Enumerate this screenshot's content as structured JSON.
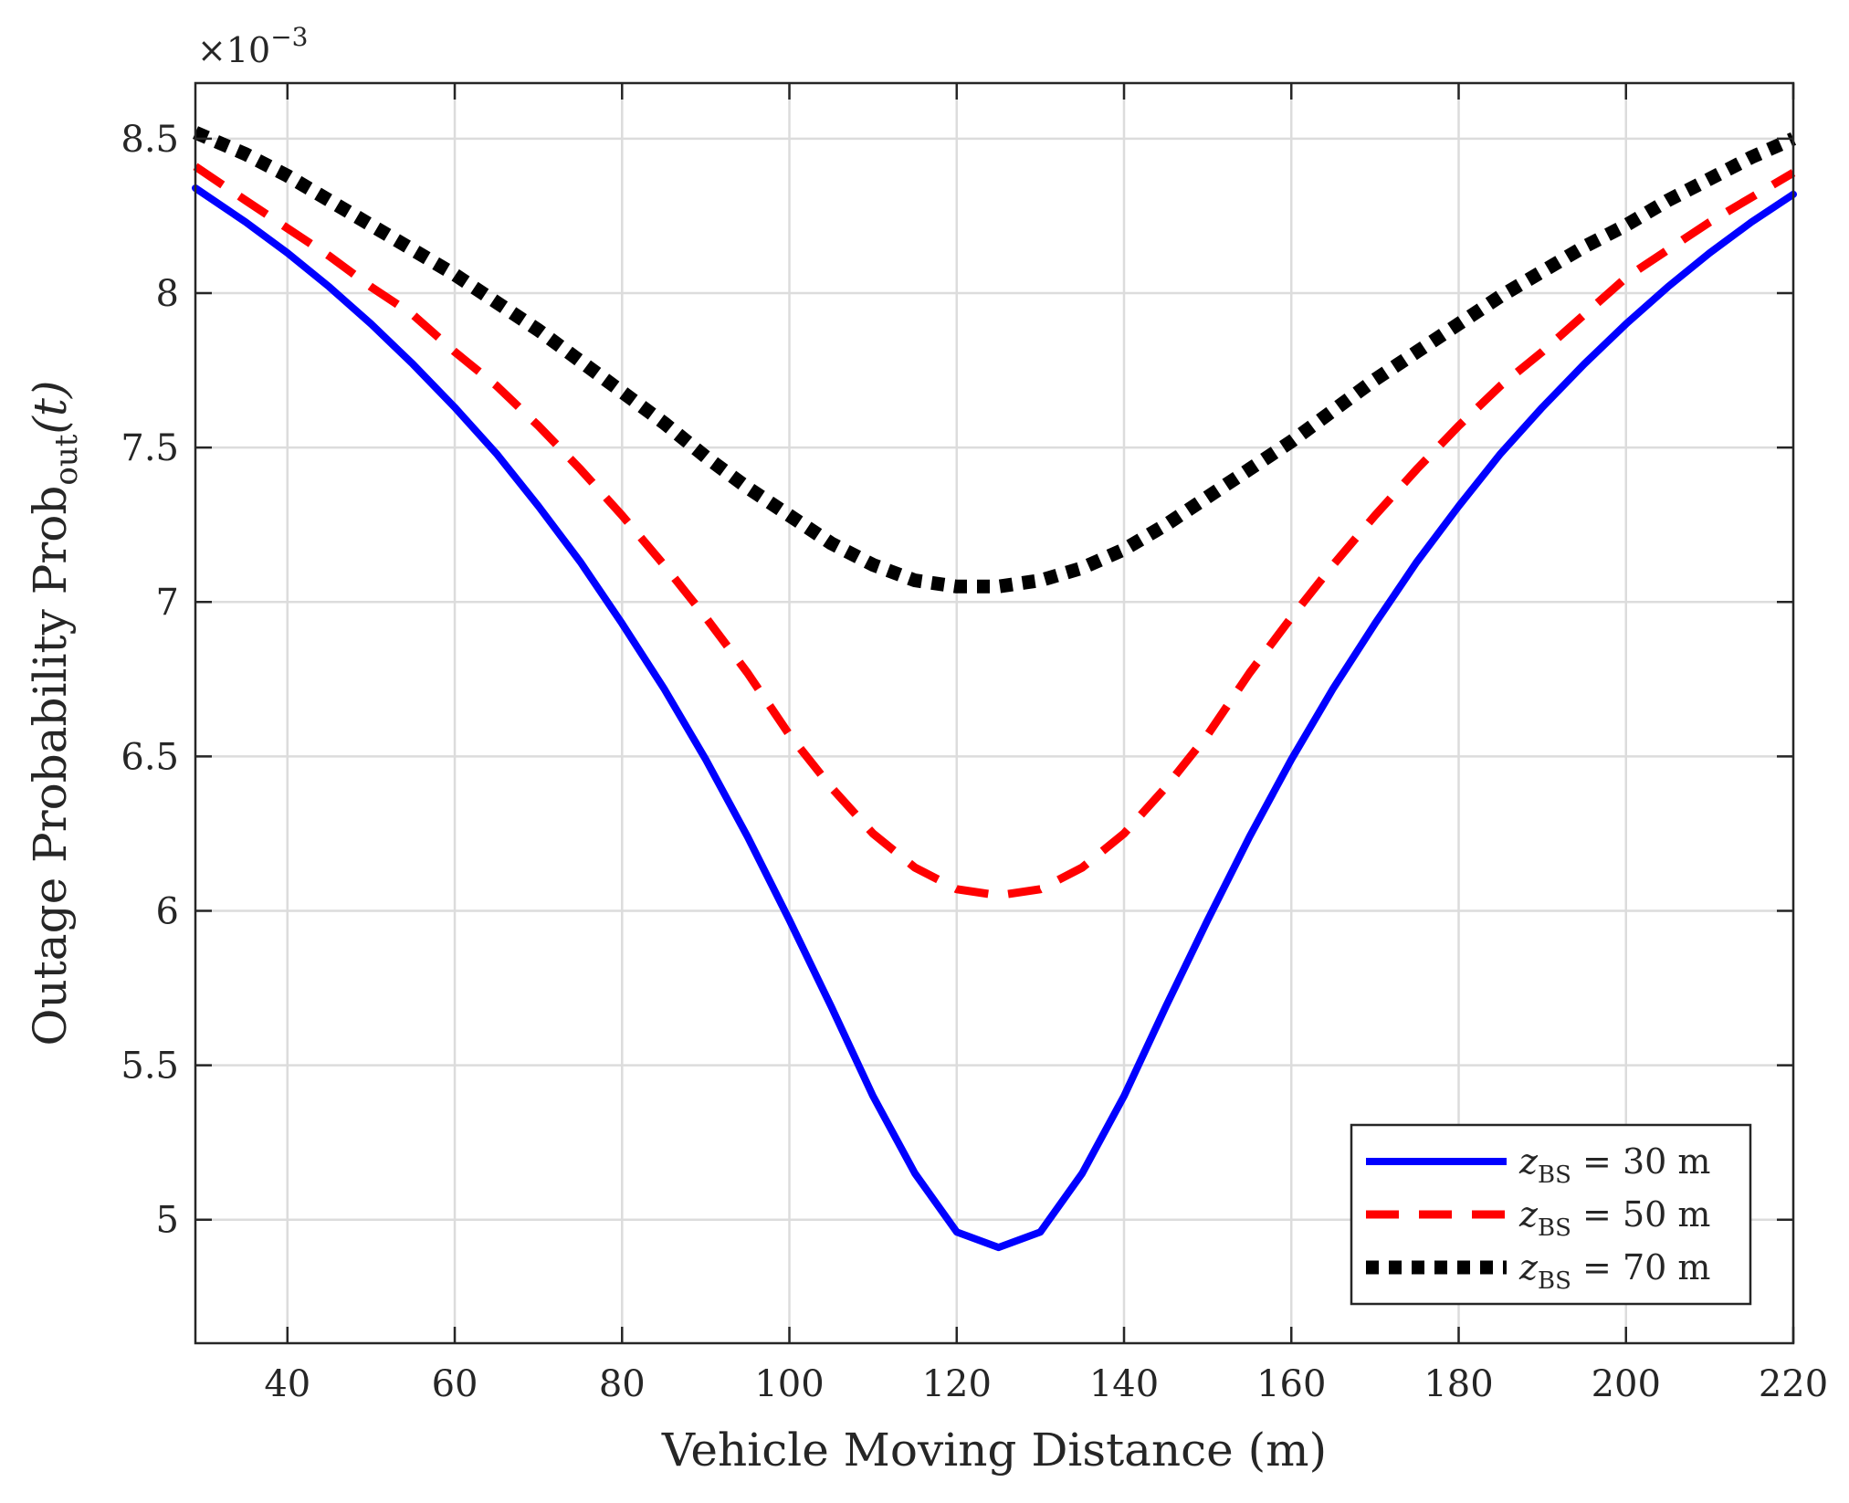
{
  "chart_data": {
    "type": "line",
    "title": "",
    "xlabel": "Vehicle Moving Distance (m)",
    "ylabel_prefix": "Outage Probability Prob",
    "ylabel_sub": "out",
    "ylabel_suffix": "(t)",
    "y_multiplier": "×10",
    "y_multiplier_exp": "−3",
    "xlim": [
      29,
      220
    ],
    "ylim": [
      4.6,
      8.68
    ],
    "xticks": [
      40,
      60,
      80,
      100,
      120,
      140,
      160,
      180,
      200,
      220
    ],
    "xtick_labels": [
      "40",
      "60",
      "80",
      "100",
      "120",
      "140",
      "160",
      "180",
      "200",
      "220"
    ],
    "yticks": [
      5,
      5.5,
      6,
      6.5,
      7,
      7.5,
      8,
      8.5
    ],
    "ytick_labels": [
      "5",
      "5.5",
      "6",
      "6.5",
      "7",
      "7.5",
      "8",
      "8.5"
    ],
    "grid": true,
    "legend_position": "bottom-right",
    "x": [
      29,
      35,
      40,
      45,
      50,
      55,
      60,
      65,
      70,
      75,
      80,
      85,
      90,
      95,
      100,
      105,
      110,
      115,
      120,
      125,
      130,
      135,
      140,
      145,
      150,
      155,
      160,
      165,
      170,
      175,
      180,
      185,
      190,
      195,
      200,
      205,
      210,
      215,
      220
    ],
    "series": [
      {
        "name": "z_BS = 30 m",
        "legend_var": "z",
        "legend_sub": "BS",
        "legend_rest": " = 30 m",
        "color": "#0000ff",
        "style": "solid",
        "values": [
          8.34,
          8.23,
          8.13,
          8.02,
          7.9,
          7.77,
          7.63,
          7.48,
          7.31,
          7.13,
          6.93,
          6.72,
          6.49,
          6.24,
          5.97,
          5.69,
          5.4,
          5.15,
          4.96,
          4.91,
          4.96,
          5.15,
          5.4,
          5.69,
          5.97,
          6.24,
          6.49,
          6.72,
          6.93,
          7.13,
          7.31,
          7.48,
          7.63,
          7.77,
          7.9,
          8.02,
          8.13,
          8.23,
          8.32
        ]
      },
      {
        "name": "z_BS = 50 m",
        "legend_var": "z",
        "legend_sub": "BS",
        "legend_rest": " = 50 m",
        "color": "#ff0000",
        "style": "dashed",
        "values": [
          8.41,
          8.3,
          8.21,
          8.12,
          8.02,
          7.93,
          7.81,
          7.7,
          7.57,
          7.43,
          7.28,
          7.12,
          6.95,
          6.77,
          6.57,
          6.4,
          6.25,
          6.14,
          6.07,
          6.05,
          6.07,
          6.14,
          6.25,
          6.4,
          6.57,
          6.77,
          6.95,
          7.12,
          7.28,
          7.43,
          7.57,
          7.7,
          7.81,
          7.93,
          8.05,
          8.14,
          8.23,
          8.31,
          8.39
        ]
      },
      {
        "name": "z_BS = 70 m",
        "legend_var": "z",
        "legend_sub": "BS",
        "legend_rest": " = 70 m",
        "color": "#000000",
        "style": "dotted",
        "values": [
          8.52,
          8.45,
          8.38,
          8.3,
          8.22,
          8.14,
          8.06,
          7.97,
          7.88,
          7.78,
          7.68,
          7.58,
          7.47,
          7.37,
          7.28,
          7.19,
          7.12,
          7.07,
          7.05,
          7.05,
          7.07,
          7.11,
          7.17,
          7.25,
          7.34,
          7.43,
          7.52,
          7.62,
          7.72,
          7.81,
          7.9,
          7.99,
          8.07,
          8.15,
          8.22,
          8.3,
          8.37,
          8.44,
          8.5
        ]
      }
    ]
  }
}
